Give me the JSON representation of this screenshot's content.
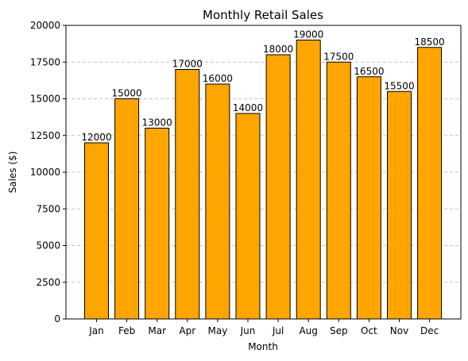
{
  "chart_data": {
    "type": "bar",
    "title": "Monthly Retail Sales",
    "xlabel": "Month",
    "ylabel": "Sales ($)",
    "categories": [
      "Jan",
      "Feb",
      "Mar",
      "Apr",
      "May",
      "Jun",
      "Jul",
      "Aug",
      "Sep",
      "Oct",
      "Nov",
      "Dec"
    ],
    "values": [
      12000,
      15000,
      13000,
      17000,
      16000,
      14000,
      18000,
      19000,
      17500,
      16500,
      15500,
      18500
    ],
    "ylim": [
      0,
      20000
    ],
    "yticks": [
      0,
      2500,
      5000,
      7500,
      10000,
      12500,
      15000,
      17500,
      20000
    ],
    "grid": "y-dashed",
    "bar_color": "#FFA500",
    "edge_color": "#000000",
    "grid_color": "#b0b0b0"
  }
}
